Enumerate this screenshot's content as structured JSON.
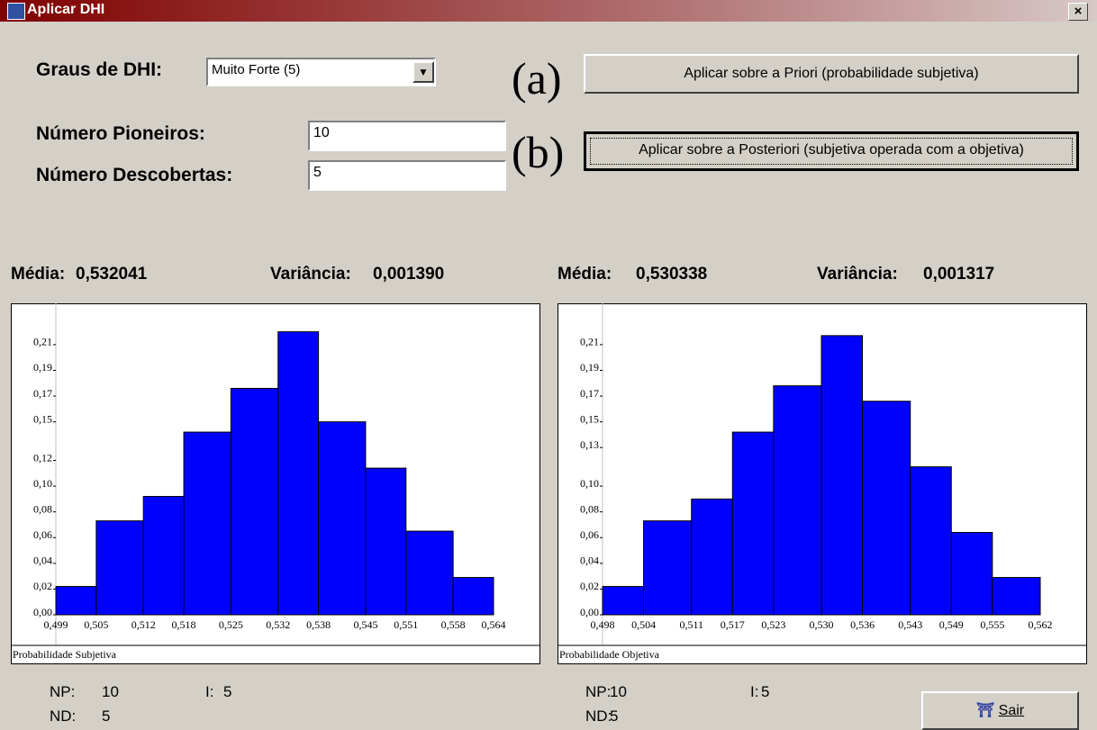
{
  "window": {
    "title": "Aplicar DHI",
    "close": "×"
  },
  "form": {
    "graus_label": "Graus de DHI:",
    "graus_value": "Muito Forte (5)",
    "pioneiros_label": "Número Pioneiros:",
    "pioneiros_value": "10",
    "descobertas_label": "Número Descobertas:",
    "descobertas_value": "5",
    "marker_a": "(a)",
    "button_a": "Aplicar sobre a Priori (probabilidade subjetiva)",
    "marker_b": "(b)",
    "button_b": "Aplicar  sobre a Posteriori (subjetiva operada com a objetiva)",
    "exit_button": "Sair"
  },
  "panels": [
    {
      "media_label": "Média:",
      "media_value": "0,532041",
      "variancia_label": "Variância:",
      "variancia_value": "0,001390",
      "np_label": "NP:",
      "np_value": "10",
      "i_label": "I:",
      "i_value": "5",
      "nd_label": "ND:",
      "nd_value": "5"
    },
    {
      "media_label": "Média:",
      "media_value": "0,530338",
      "variancia_label": "Variância:",
      "variancia_value": "0,001317",
      "np_label": "NP:",
      "np_value": "10",
      "i_label": "I:",
      "i_value": "5",
      "nd_label": "ND:",
      "nd_value": "5"
    }
  ],
  "chart_data": [
    {
      "type": "histogram",
      "xlabel": "Probabilidade Subjetiva",
      "color": "#0000ff",
      "bins": [
        0.499,
        0.505,
        0.512,
        0.518,
        0.525,
        0.532,
        0.538,
        0.545,
        0.551,
        0.558,
        0.564
      ],
      "values": [
        0.022,
        0.073,
        0.092,
        0.142,
        0.176,
        0.22,
        0.15,
        0.114,
        0.065,
        0.029
      ],
      "xlim": [
        0.499,
        0.564
      ],
      "xticks": [
        {
          "value": 0.499,
          "label": "0,499"
        },
        {
          "value": 0.505,
          "label": "0,505"
        },
        {
          "value": 0.512,
          "label": "0,512"
        },
        {
          "value": 0.518,
          "label": "0,518"
        },
        {
          "value": 0.525,
          "label": "0,525"
        },
        {
          "value": 0.532,
          "label": "0,532"
        },
        {
          "value": 0.538,
          "label": "0,538"
        },
        {
          "value": 0.545,
          "label": "0,545"
        },
        {
          "value": 0.551,
          "label": "0,551"
        },
        {
          "value": 0.558,
          "label": "0,558"
        },
        {
          "value": 0.564,
          "label": "0,564"
        }
      ],
      "ylim": [
        0,
        0.24
      ],
      "yticks": [
        {
          "value": 0,
          "label": "0,00"
        },
        {
          "value": 0.02,
          "label": "0,02"
        },
        {
          "value": 0.04,
          "label": "0,04"
        },
        {
          "value": 0.06,
          "label": "0,06"
        },
        {
          "value": 0.08,
          "label": "0,08"
        },
        {
          "value": 0.1,
          "label": "0,10"
        },
        {
          "value": 0.12,
          "label": "0,12"
        },
        {
          "value": 0.15,
          "label": "0,15"
        },
        {
          "value": 0.17,
          "label": "0,17"
        },
        {
          "value": 0.19,
          "label": "0,19"
        },
        {
          "value": 0.21,
          "label": "0,21"
        }
      ]
    },
    {
      "type": "histogram",
      "xlabel": "Probabilidade Objetiva",
      "color": "#0000ff",
      "bins": [
        0.498,
        0.504,
        0.511,
        0.517,
        0.523,
        0.53,
        0.536,
        0.543,
        0.549,
        0.555,
        0.562
      ],
      "values": [
        0.022,
        0.073,
        0.09,
        0.142,
        0.178,
        0.217,
        0.166,
        0.115,
        0.064,
        0.029
      ],
      "xlim": [
        0.498,
        0.562
      ],
      "xticks": [
        {
          "value": 0.498,
          "label": "0,498"
        },
        {
          "value": 0.504,
          "label": "0,504"
        },
        {
          "value": 0.511,
          "label": "0,511"
        },
        {
          "value": 0.517,
          "label": "0,517"
        },
        {
          "value": 0.523,
          "label": "0,523"
        },
        {
          "value": 0.53,
          "label": "0,530"
        },
        {
          "value": 0.536,
          "label": "0,536"
        },
        {
          "value": 0.543,
          "label": "0,543"
        },
        {
          "value": 0.549,
          "label": "0,549"
        },
        {
          "value": 0.555,
          "label": "0,555"
        },
        {
          "value": 0.562,
          "label": "0,562"
        }
      ],
      "ylim": [
        0,
        0.24
      ],
      "yticks": [
        {
          "value": 0,
          "label": "0,00"
        },
        {
          "value": 0.02,
          "label": "0,02"
        },
        {
          "value": 0.04,
          "label": "0,04"
        },
        {
          "value": 0.06,
          "label": "0,06"
        },
        {
          "value": 0.08,
          "label": "0,08"
        },
        {
          "value": 0.1,
          "label": "0,10"
        },
        {
          "value": 0.13,
          "label": "0,13"
        },
        {
          "value": 0.15,
          "label": "0,15"
        },
        {
          "value": 0.17,
          "label": "0,17"
        },
        {
          "value": 0.19,
          "label": "0,19"
        },
        {
          "value": 0.21,
          "label": "0,21"
        }
      ]
    }
  ]
}
